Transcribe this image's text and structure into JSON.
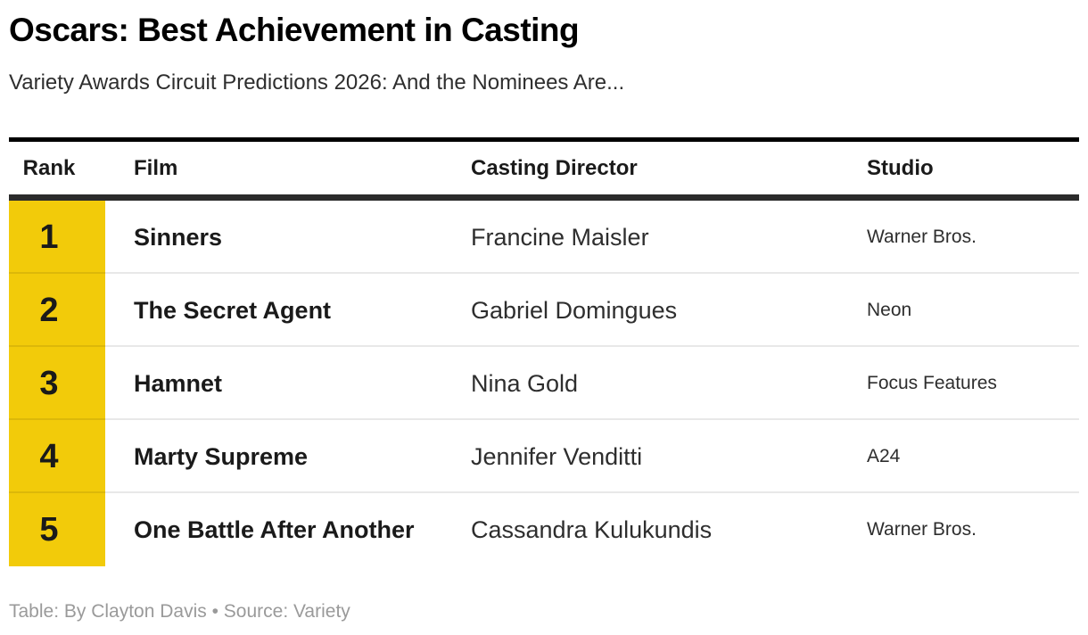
{
  "header": {
    "title": "Oscars: Best Achievement in Casting",
    "subtitle": "Variety Awards Circuit Predictions 2026: And the Nominees Are..."
  },
  "chart_data": {
    "type": "table",
    "title": "Oscars: Best Achievement in Casting",
    "subtitle": "Variety Awards Circuit Predictions 2026: And the Nominees Are...",
    "columns": [
      "Rank",
      "Film",
      "Casting Director",
      "Studio"
    ],
    "rows": [
      [
        "1",
        "Sinners",
        "Francine Maisler",
        "Warner Bros."
      ],
      [
        "2",
        "The Secret Agent",
        "Gabriel Domingues",
        "Neon"
      ],
      [
        "3",
        "Hamnet",
        "Nina Gold",
        "Focus Features"
      ],
      [
        "4",
        "Marty Supreme",
        "Jennifer Venditti",
        "A24"
      ],
      [
        "5",
        "One Battle After Another",
        "Cassandra Kulukundis",
        "Warner Bros."
      ]
    ],
    "layout": {
      "rank_column_highlight": "#F2CB0A",
      "header_top_rule_color": "#000000",
      "header_bottom_rule_color": "#2b2b2b",
      "row_separator_color": "rgba(0,0,0,0.09)",
      "legend": "none",
      "grid": "horizontal-separators-only"
    }
  },
  "footer": {
    "credit": "Table: By Clayton Davis • Source: Variety"
  }
}
